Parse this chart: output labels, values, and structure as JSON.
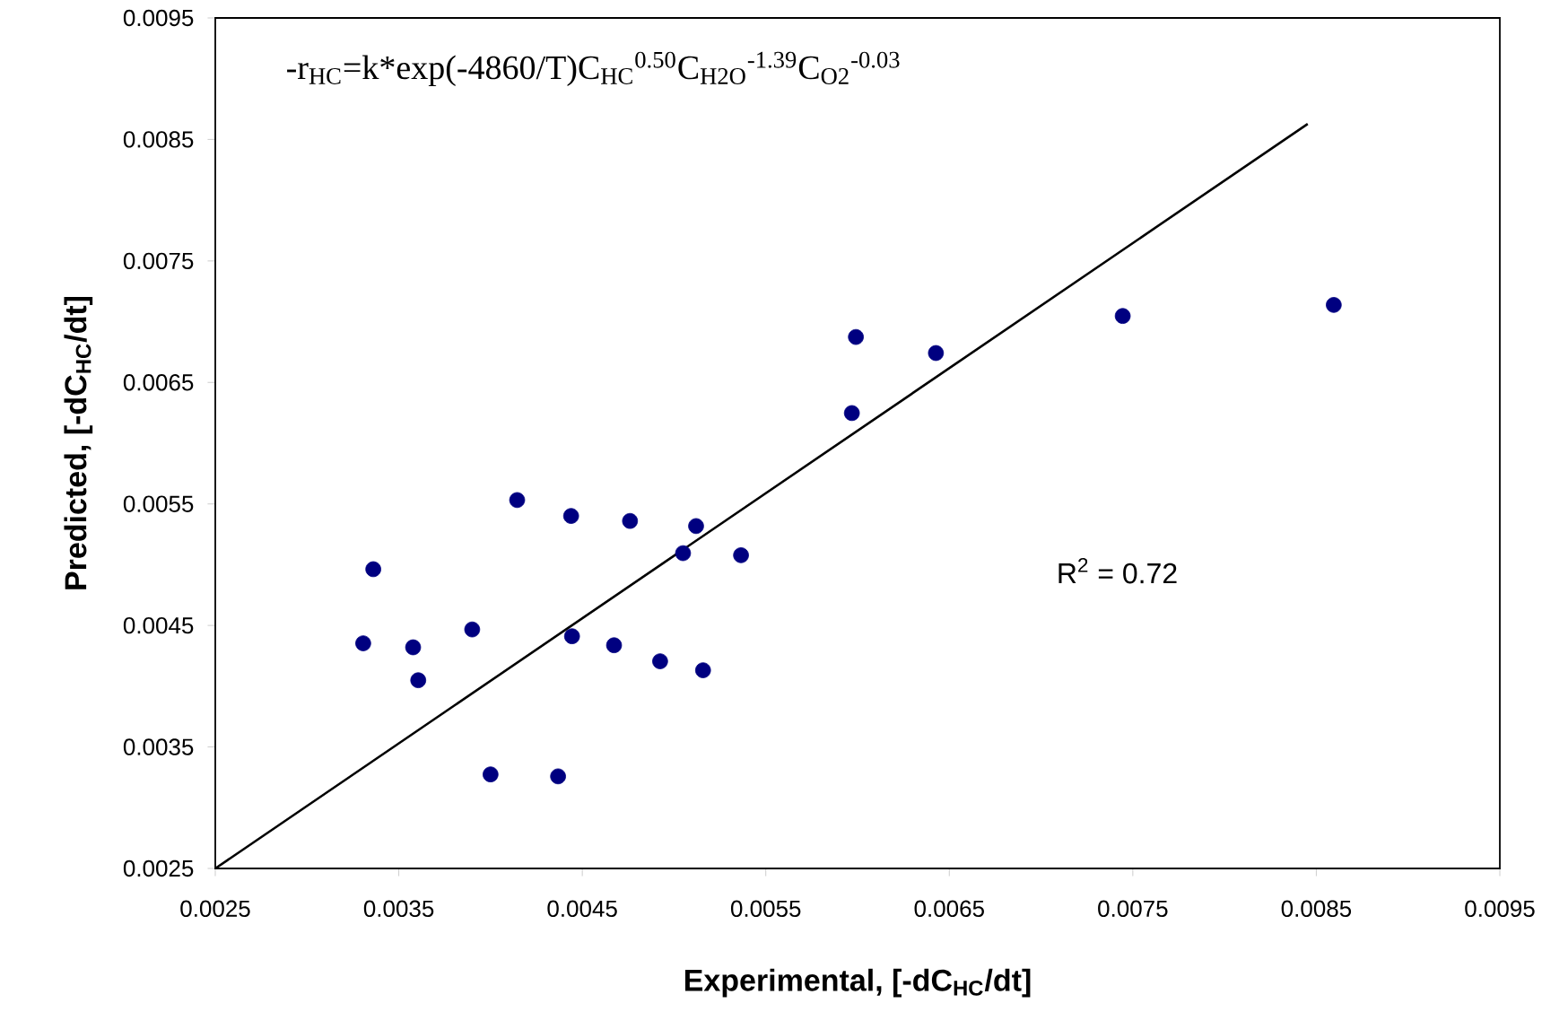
{
  "chart_data": {
    "type": "scatter",
    "xlabel": "Experimental, [-dC$_{HC}$/dt]",
    "ylabel": "Predicted, [-dC$_{HC}$/dt]",
    "annotations": [
      "-r$_{HC}$=k*exp(-4860/T)C$_{HC}$$^{0.50}$C$_{H2O}$$^{-1.39}$C$_{O2}$$^{-0.03}$",
      "R$^{2}$ = 0.72"
    ],
    "series": [
      {
        "color": "#000080",
        "marker": "circle",
        "x": [
          0.003306,
          0.003361,
          0.003578,
          0.003606,
          0.0039,
          0.004,
          0.004145,
          0.004368,
          0.004439,
          0.004444,
          0.004673,
          0.00476,
          0.004924,
          0.005049,
          0.00512,
          0.005158,
          0.005365,
          0.005969,
          0.005991,
          0.006427,
          0.007445,
          0.008595
        ],
        "values": [
          0.004353,
          0.004963,
          0.00432,
          0.004049,
          0.004467,
          0.003274,
          0.005532,
          0.003258,
          0.005401,
          0.004411,
          0.004337,
          0.00536,
          0.004205,
          0.005095,
          0.005318,
          0.004131,
          0.005078,
          0.006248,
          0.006874,
          0.006742,
          0.007047,
          0.007138
        ]
      },
      {
        "type": "line",
        "color": "#000000",
        "marker": "none",
        "x": [
          0.0025,
          0.008453
        ],
        "values": [
          0.0025,
          0.008628
        ]
      }
    ],
    "xlim": [
      0.0025,
      0.0095
    ],
    "ylim": [
      0.0025,
      0.0095
    ],
    "xticks": [
      0.0025,
      0.0035,
      0.0045,
      0.0055,
      0.0065,
      0.0075,
      0.0085,
      0.0095
    ],
    "yticks": [
      0.0025,
      0.0035,
      0.0045,
      0.0055,
      0.0065,
      0.0075,
      0.0085,
      0.0095
    ],
    "grid": false
  }
}
